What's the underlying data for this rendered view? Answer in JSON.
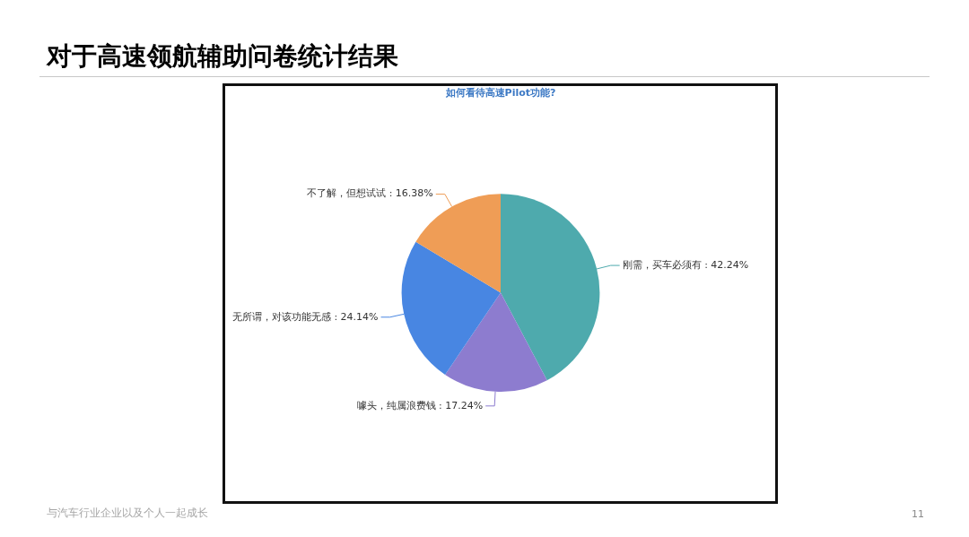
{
  "chart_data": {
    "type": "pie",
    "title": "对于高速领航辅助问卷统计结果",
    "subtitle": "如何看待高速Pilot功能?",
    "categories": [
      "刚需，买车必须有",
      "噱头，纯属浪费钱",
      "无所谓，对该功能无感",
      "不了解，但想试试"
    ],
    "values": [
      42.24,
      17.24,
      24.14,
      16.38
    ],
    "colors": [
      "#4eaaad",
      "#8d7ccf",
      "#4886e2",
      "#ef9d56"
    ],
    "value_labels": [
      ": 42.24%",
      ": 17.24%",
      ": 24.14%",
      ": 16.38%"
    ],
    "annotations": [
      "与汽车行业企业以及个人一起成长",
      "11"
    ]
  }
}
